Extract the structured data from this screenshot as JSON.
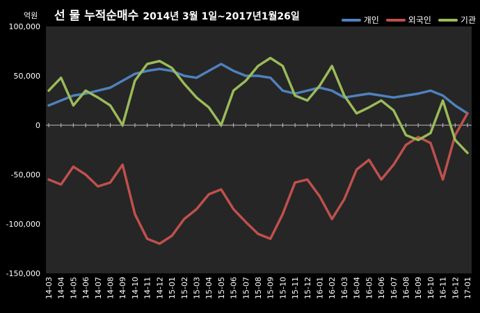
{
  "chart_data": {
    "type": "line",
    "title": "선 물 누적순매수",
    "subtitle": "2014년 3월 1일~2017년1월26일",
    "ylabel": "억원",
    "ylim": [
      -150000,
      100000
    ],
    "yticks": [
      100000,
      50000,
      0,
      -50000,
      -100000,
      -150000
    ],
    "ytick_labels": [
      "100,000",
      "50,000",
      "0",
      "-50,000",
      "-100,000",
      "-150,000"
    ],
    "x": [
      "14-03",
      "14-04",
      "14-05",
      "14-06",
      "14-07",
      "14-08",
      "14-09",
      "14-10",
      "14-11",
      "14-12",
      "15-01",
      "15-02",
      "15-03",
      "15-04",
      "15-05",
      "15-06",
      "15-07",
      "15-08",
      "15-09",
      "15-10",
      "15-11",
      "15-12",
      "16-01",
      "16-02",
      "16-03",
      "16-04",
      "16-05",
      "16-06",
      "16-07",
      "16-08",
      "16-09",
      "16-10",
      "16-11",
      "16-12",
      "17-01"
    ],
    "legend_position": "top-right",
    "grid": false,
    "series": [
      {
        "name": "개인",
        "color": "#4f81bd",
        "values": [
          20000,
          25000,
          30000,
          32000,
          35000,
          38000,
          45000,
          52000,
          55000,
          57000,
          55000,
          50000,
          48000,
          55000,
          62000,
          55000,
          50000,
          50000,
          48000,
          35000,
          32000,
          35000,
          38000,
          35000,
          28000,
          30000,
          32000,
          30000,
          28000,
          30000,
          32000,
          35000,
          30000,
          20000,
          12000
        ]
      },
      {
        "name": "외국인",
        "color": "#c0504d",
        "values": [
          -55000,
          -60000,
          -42000,
          -50000,
          -62000,
          -58000,
          -40000,
          -90000,
          -115000,
          -120000,
          -112000,
          -95000,
          -85000,
          -70000,
          -65000,
          -85000,
          -98000,
          -110000,
          -115000,
          -90000,
          -58000,
          -55000,
          -72000,
          -95000,
          -75000,
          -45000,
          -35000,
          -55000,
          -40000,
          -20000,
          -12000,
          -18000,
          -55000,
          -10000,
          12000
        ]
      },
      {
        "name": "기관",
        "color": "#9bbb59",
        "values": [
          35000,
          48000,
          20000,
          35000,
          28000,
          20000,
          0,
          45000,
          62000,
          65000,
          58000,
          42000,
          28000,
          18000,
          0,
          35000,
          45000,
          60000,
          68000,
          60000,
          30000,
          25000,
          40000,
          60000,
          30000,
          12000,
          18000,
          25000,
          15000,
          -10000,
          -15000,
          -8000,
          25000,
          -15000,
          -28000
        ]
      }
    ]
  }
}
